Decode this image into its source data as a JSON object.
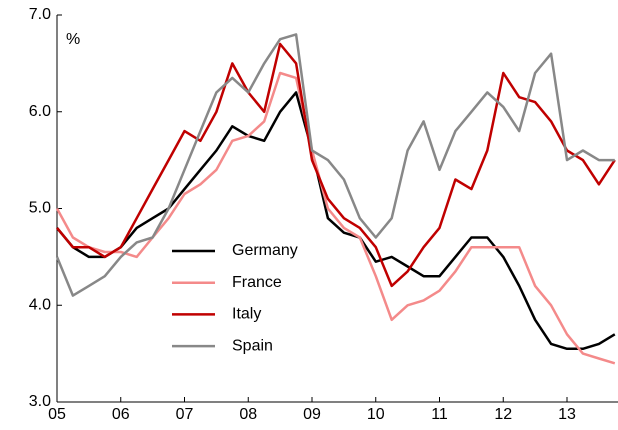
{
  "chart_data": {
    "type": "line",
    "annotations": [
      "%"
    ],
    "x": [
      2005,
      2005.25,
      2005.5,
      2005.75,
      2006,
      2006.25,
      2006.5,
      2006.75,
      2007,
      2007.25,
      2007.5,
      2007.75,
      2008,
      2008.25,
      2008.5,
      2008.75,
      2009,
      2009.25,
      2009.5,
      2009.75,
      2010,
      2010.25,
      2010.5,
      2010.75,
      2011,
      2011.25,
      2011.5,
      2011.75,
      2012,
      2012.25,
      2012.5,
      2012.75,
      2013,
      2013.25,
      2013.5,
      2013.75
    ],
    "series": [
      {
        "name": "Germany",
        "color": "#000000",
        "values": [
          4.8,
          4.6,
          4.5,
          4.5,
          4.6,
          4.8,
          4.9,
          5.0,
          5.2,
          5.4,
          5.6,
          5.85,
          5.75,
          5.7,
          6.0,
          6.2,
          5.6,
          4.9,
          4.75,
          4.7,
          4.45,
          4.5,
          4.4,
          4.3,
          4.3,
          4.5,
          4.7,
          4.7,
          4.5,
          4.2,
          3.85,
          3.6,
          3.55,
          3.55,
          3.6,
          3.7
        ]
      },
      {
        "name": "France",
        "color": "#f48a8a",
        "values": [
          5.0,
          4.7,
          4.6,
          4.55,
          4.55,
          4.5,
          4.7,
          4.9,
          5.15,
          5.25,
          5.4,
          5.7,
          5.75,
          5.9,
          6.4,
          6.35,
          5.6,
          5.0,
          4.8,
          4.7,
          4.3,
          3.85,
          4.0,
          4.05,
          4.15,
          4.35,
          4.6,
          4.6,
          4.6,
          4.6,
          4.2,
          4.0,
          3.7,
          3.5,
          3.45,
          3.4
        ]
      },
      {
        "name": "Italy",
        "color": "#c00000",
        "values": [
          4.8,
          4.6,
          4.6,
          4.5,
          4.6,
          4.9,
          5.2,
          5.5,
          5.8,
          5.7,
          6.0,
          6.5,
          6.2,
          6.0,
          6.7,
          6.5,
          5.5,
          5.1,
          4.9,
          4.8,
          4.6,
          4.2,
          4.35,
          4.6,
          4.8,
          5.3,
          5.2,
          5.6,
          6.4,
          6.15,
          6.1,
          5.9,
          5.6,
          5.5,
          5.25,
          5.5
        ]
      },
      {
        "name": "Spain",
        "color": "#888888",
        "values": [
          4.5,
          4.1,
          4.2,
          4.3,
          4.5,
          4.65,
          4.7,
          5.0,
          5.4,
          5.8,
          6.2,
          6.35,
          6.2,
          6.5,
          6.75,
          6.8,
          5.6,
          5.5,
          5.3,
          4.9,
          4.7,
          4.9,
          5.6,
          5.9,
          5.4,
          5.8,
          6.0,
          6.2,
          6.05,
          5.8,
          6.4,
          6.6,
          5.5,
          5.6,
          5.5,
          5.5
        ]
      }
    ],
    "xlim": [
      2005,
      2013.8
    ],
    "xticks": [
      {
        "value": 2005,
        "label": "05"
      },
      {
        "value": 2006,
        "label": "06"
      },
      {
        "value": 2007,
        "label": "07"
      },
      {
        "value": 2008,
        "label": "08"
      },
      {
        "value": 2009,
        "label": "09"
      },
      {
        "value": 2010,
        "label": "10"
      },
      {
        "value": 2011,
        "label": "11"
      },
      {
        "value": 2012,
        "label": "12"
      },
      {
        "value": 2013,
        "label": "13"
      }
    ],
    "ylim": [
      3,
      7
    ],
    "yticks": [
      {
        "value": 3,
        "label": "3.0"
      },
      {
        "value": 4,
        "label": "4.0"
      },
      {
        "value": 5,
        "label": "5.0"
      },
      {
        "value": 6,
        "label": "6.0"
      },
      {
        "value": 7,
        "label": "7.0"
      }
    ],
    "grid": false,
    "legend": "center"
  }
}
